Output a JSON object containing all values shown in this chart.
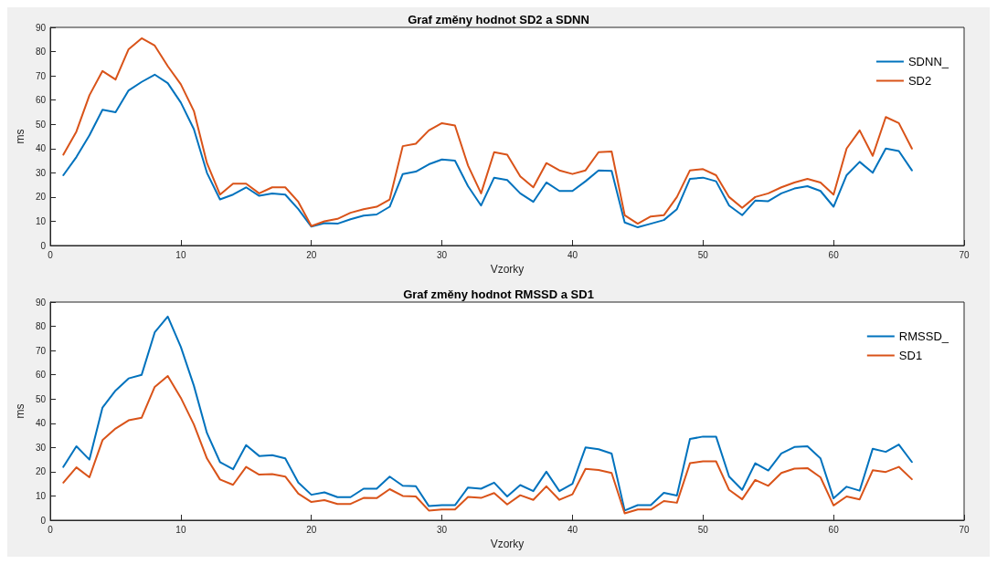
{
  "chart_data": [
    {
      "type": "line",
      "title": "Graf změny hodnot SD2 a SDNN",
      "xlabel": "Vzorky",
      "ylabel": "ms",
      "x": [
        1,
        2,
        3,
        4,
        5,
        6,
        7,
        8,
        9,
        10,
        11,
        12,
        13,
        14,
        15,
        16,
        17,
        18,
        19,
        20,
        21,
        22,
        23,
        24,
        25,
        26,
        27,
        28,
        29,
        30,
        31,
        32,
        33,
        34,
        35,
        36,
        37,
        38,
        39,
        40,
        41,
        42,
        43,
        44,
        45,
        46,
        47,
        48,
        49,
        50,
        51,
        52,
        53,
        54,
        55,
        56,
        57,
        58,
        59,
        60,
        61,
        62,
        63,
        64,
        65,
        66
      ],
      "series": [
        {
          "name": "SDNN_",
          "color": "#0072bd",
          "values": [
            29,
            36.5,
            45.5,
            56,
            55,
            64,
            67.5,
            70.5,
            67,
            59,
            48,
            30,
            19,
            21,
            24,
            20.5,
            21.5,
            21,
            15,
            7.8,
            9.2,
            9,
            10.8,
            12.3,
            12.8,
            16,
            29.5,
            30.5,
            33.5,
            35.5,
            35,
            24.5,
            16.5,
            28,
            27,
            21.5,
            18,
            26,
            22.5,
            22.5,
            26.5,
            31,
            30.8,
            9.5,
            7.5,
            9,
            10.5,
            15,
            27.5,
            28,
            26.5,
            16.5,
            12.5,
            18.5,
            18.3,
            21.5,
            23.5,
            24.5,
            22.5,
            16,
            29,
            34.5,
            30,
            40,
            39,
            31
          ]
        },
        {
          "name": "SD2",
          "color": "#d95319",
          "values": [
            37.5,
            47,
            62,
            72,
            68.5,
            81,
            85.5,
            82.5,
            74,
            66.5,
            55.5,
            34,
            21,
            25.5,
            25.5,
            21.5,
            24,
            24,
            18,
            8,
            10,
            11,
            13.5,
            15,
            16,
            19,
            41,
            42,
            47.5,
            50.5,
            49.5,
            33,
            21.5,
            38.5,
            37.5,
            28.5,
            24,
            34,
            31,
            29.5,
            31,
            38.5,
            38.8,
            12.5,
            9,
            12,
            12.5,
            20,
            31,
            31.5,
            29,
            20,
            15.5,
            20,
            21.5,
            24,
            26,
            27.5,
            26,
            21,
            40,
            47.5,
            37,
            53,
            50.5,
            40
          ]
        }
      ],
      "xlim": [
        0,
        70
      ],
      "xticks": [
        0,
        10,
        20,
        30,
        40,
        50,
        60,
        70
      ],
      "ylim": [
        0,
        90
      ],
      "yticks": [
        0,
        10,
        20,
        30,
        40,
        50,
        60,
        70,
        80,
        90
      ],
      "grid": false,
      "legend": "top right"
    },
    {
      "type": "line",
      "title": "Graf změny hodnot RMSSD a SD1",
      "xlabel": "Vzorky",
      "ylabel": "ms",
      "x": [
        1,
        2,
        3,
        4,
        5,
        6,
        7,
        8,
        9,
        10,
        11,
        12,
        13,
        14,
        15,
        16,
        17,
        18,
        19,
        20,
        21,
        22,
        23,
        24,
        25,
        26,
        27,
        28,
        29,
        30,
        31,
        32,
        33,
        34,
        35,
        36,
        37,
        38,
        39,
        40,
        41,
        42,
        43,
        44,
        45,
        46,
        47,
        48,
        49,
        50,
        51,
        52,
        53,
        54,
        55,
        56,
        57,
        58,
        59,
        60,
        61,
        62,
        63,
        64,
        65,
        66
      ],
      "series": [
        {
          "name": "RMSSD_",
          "color": "#0072bd",
          "values": [
            22,
            30.5,
            25,
            46.5,
            53.5,
            58.5,
            60,
            77.5,
            84,
            71.5,
            55.5,
            36,
            24,
            21,
            31,
            26.5,
            26.8,
            25.5,
            15.5,
            10.5,
            11.5,
            9.5,
            9.5,
            13,
            13,
            18,
            14.2,
            14,
            5.8,
            6.2,
            6.2,
            13.5,
            13,
            15.5,
            9.8,
            14.5,
            12,
            20,
            12,
            15,
            30,
            29.3,
            27.5,
            4,
            6.2,
            6.2,
            11.3,
            10.2,
            33.5,
            34.5,
            34.5,
            18,
            12.5,
            23.5,
            20.5,
            27.5,
            30.2,
            30.5,
            25.5,
            9,
            13.8,
            12.2,
            29.5,
            28.2,
            31.2,
            24
          ]
        },
        {
          "name": "SD1",
          "color": "#d95319",
          "values": [
            15.5,
            21.8,
            17.7,
            33,
            37.8,
            41.2,
            42.3,
            55,
            59.5,
            50.5,
            39.5,
            25.5,
            16.8,
            14.6,
            22,
            18.8,
            19,
            18,
            11,
            7.5,
            8.3,
            6.7,
            6.7,
            9.2,
            9.1,
            12.8,
            10,
            9.8,
            4,
            4.4,
            4.4,
            9.6,
            9.2,
            11.2,
            6.5,
            10.3,
            8.4,
            14,
            8.4,
            10.7,
            21.2,
            20.7,
            19.5,
            2.8,
            4.4,
            4.4,
            7.9,
            7.2,
            23.5,
            24.3,
            24.3,
            12.5,
            8.6,
            16.6,
            14.2,
            19.5,
            21.3,
            21.5,
            17.7,
            6.1,
            9.8,
            8.6,
            20.6,
            19.9,
            22,
            16.9
          ]
        }
      ],
      "xlim": [
        0,
        70
      ],
      "xticks": [
        0,
        10,
        20,
        30,
        40,
        50,
        60,
        70
      ],
      "ylim": [
        0,
        90
      ],
      "yticks": [
        0,
        10,
        20,
        30,
        40,
        50,
        60,
        70,
        80,
        90
      ],
      "grid": false,
      "legend": "top right"
    }
  ]
}
